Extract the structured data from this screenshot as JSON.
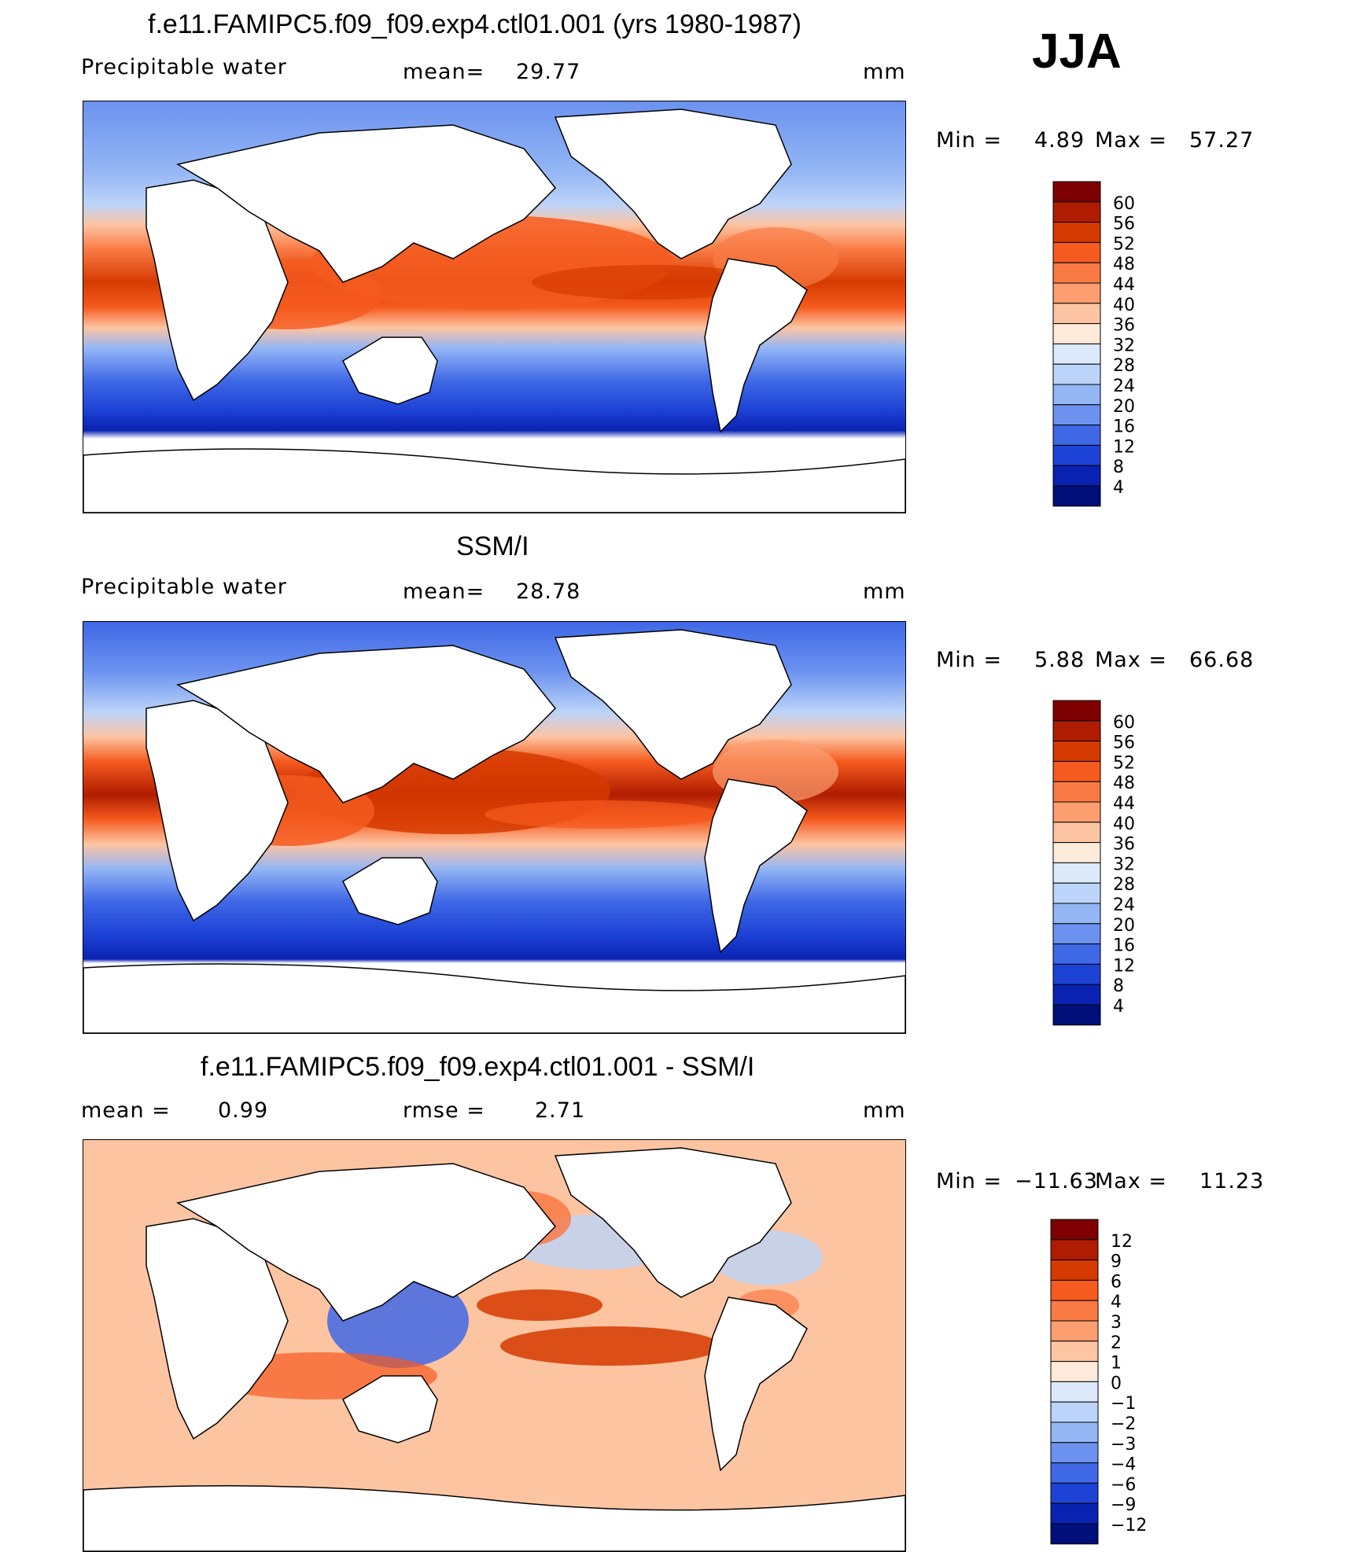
{
  "season": "JJA",
  "unit_label": "mm",
  "panels": [
    {
      "title": "f.e11.FAMIPC5.f09_f09.exp4.ctl01.001 (yrs 1980-1987)",
      "variable": "Precipitable  water",
      "mean_label": "mean=",
      "mean_value": "29.77",
      "unit": "mm",
      "min_label": "Min  =",
      "min_value": "4.89",
      "max_label": "Max  =",
      "max_value": "57.27",
      "colorbar": {
        "labels": [
          "60",
          "56",
          "52",
          "48",
          "44",
          "40",
          "36",
          "32",
          "28",
          "24",
          "20",
          "16",
          "12",
          "8",
          "4"
        ],
        "colors": [
          "#7f0000",
          "#b01c00",
          "#d53a00",
          "#f55a1e",
          "#fa7a44",
          "#fc9e70",
          "#fdc4a2",
          "#feeada",
          "#dbe9fb",
          "#bcd4f9",
          "#94b6f5",
          "#6b92ef",
          "#3f68e6",
          "#1d42d6",
          "#0a22b2",
          "#000f7a"
        ]
      }
    },
    {
      "title": "SSM/I",
      "variable": "Precipitable  water",
      "mean_label": "mean=",
      "mean_value": "28.78",
      "unit": "mm",
      "min_label": "Min  =",
      "min_value": "5.88",
      "max_label": "Max  =",
      "max_value": "66.68",
      "colorbar": {
        "labels": [
          "60",
          "56",
          "52",
          "48",
          "44",
          "40",
          "36",
          "32",
          "28",
          "24",
          "20",
          "16",
          "12",
          "8",
          "4"
        ],
        "colors": [
          "#7f0000",
          "#b01c00",
          "#d53a00",
          "#f55a1e",
          "#fa7a44",
          "#fc9e70",
          "#fdc4a2",
          "#feeada",
          "#dbe9fb",
          "#bcd4f9",
          "#94b6f5",
          "#6b92ef",
          "#3f68e6",
          "#1d42d6",
          "#0a22b2",
          "#000f7a"
        ]
      }
    },
    {
      "title": "f.e11.FAMIPC5.f09_f09.exp4.ctl01.001 - SSM/I",
      "mean_label": "mean =",
      "mean_value": "0.99",
      "rmse_label": "rmse =",
      "rmse_value": "2.71",
      "unit": "mm",
      "min_label": "Min  =",
      "min_value": "−11.63",
      "max_label": "Max  =",
      "max_value": "11.23",
      "colorbar": {
        "labels": [
          "12",
          "9",
          "6",
          "4",
          "3",
          "2",
          "1",
          "0",
          "−1",
          "−2",
          "−3",
          "−4",
          "−6",
          "−9",
          "−12"
        ],
        "colors": [
          "#7f0000",
          "#b01c00",
          "#d53a00",
          "#f55a1e",
          "#fa7a44",
          "#fc9e70",
          "#fdc4a2",
          "#feeada",
          "#dbe9fb",
          "#bcd4f9",
          "#94b6f5",
          "#6b92ef",
          "#3f68e6",
          "#1d42d6",
          "#0a22b2",
          "#000f7a"
        ]
      }
    }
  ]
}
